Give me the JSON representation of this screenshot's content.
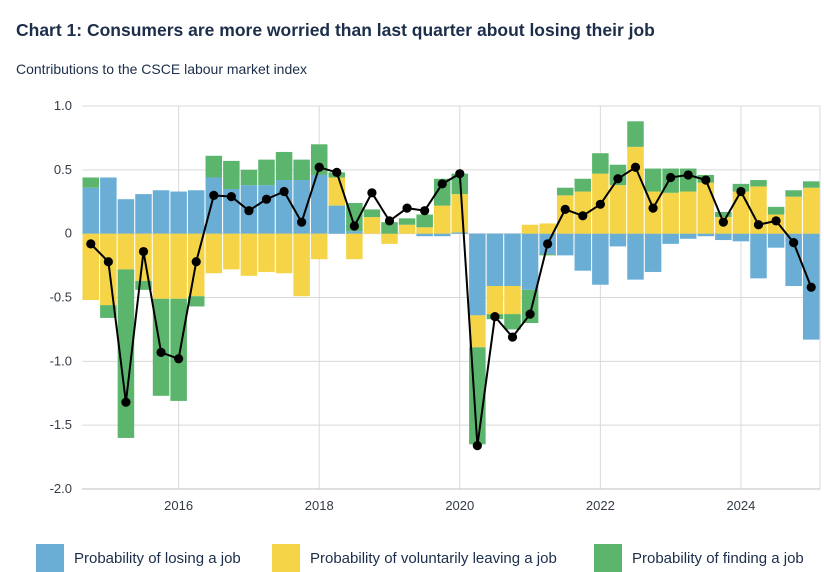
{
  "title": "Chart 1: Consumers are more worried than last quarter about losing their job",
  "subtitle": "Contributions to the CSCE labour market index",
  "colors": {
    "losing": "#6aaed6",
    "leaving": "#f5d547",
    "finding": "#5bb56c",
    "index": "#000000"
  },
  "chart_data": {
    "type": "bar",
    "stacked": true,
    "xlabel": "",
    "ylabel": "",
    "ylim": [
      -2.0,
      1.0
    ],
    "yticks": [
      "1.0",
      "0.5",
      "0",
      "-0.5",
      "-1.0",
      "-1.5",
      "-2.0"
    ],
    "xticks": [
      "2016",
      "2018",
      "2020",
      "2022",
      "2024"
    ],
    "grid": true,
    "legend_position": "bottom",
    "x": [
      "2014Q4",
      "2015Q1",
      "2015Q2",
      "2015Q3",
      "2015Q4",
      "2016Q1",
      "2016Q2",
      "2016Q3",
      "2016Q4",
      "2017Q1",
      "2017Q2",
      "2017Q3",
      "2017Q4",
      "2018Q1",
      "2018Q2",
      "2018Q3",
      "2018Q4",
      "2019Q1",
      "2019Q2",
      "2019Q3",
      "2019Q4",
      "2020Q1",
      "2020Q2",
      "2020Q3",
      "2020Q4",
      "2021Q1",
      "2021Q2",
      "2021Q3",
      "2021Q4",
      "2022Q1",
      "2022Q2",
      "2022Q3",
      "2022Q4",
      "2023Q1",
      "2023Q2",
      "2023Q3",
      "2023Q4",
      "2024Q1",
      "2024Q2",
      "2024Q3",
      "2024Q4",
      "2025Q1"
    ],
    "series": [
      {
        "name": "Probability of losing a job",
        "values": [
          0.36,
          0.44,
          0.27,
          0.31,
          0.34,
          0.33,
          0.34,
          0.44,
          0.35,
          0.38,
          0.38,
          0.42,
          0.42,
          0.46,
          0.22,
          0.02,
          0.0,
          0.0,
          0.0,
          -0.02,
          -0.02,
          0.01,
          -0.64,
          -0.41,
          -0.41,
          -0.44,
          -0.16,
          -0.17,
          -0.29,
          -0.4,
          -0.1,
          -0.36,
          -0.3,
          -0.08,
          -0.04,
          -0.02,
          -0.05,
          -0.06,
          -0.35,
          -0.11,
          -0.41,
          -0.83
        ]
      },
      {
        "name": "Probability of voluntarily leaving a job",
        "values": [
          -0.52,
          -0.56,
          -0.28,
          -0.37,
          -0.51,
          -0.51,
          -0.49,
          -0.31,
          -0.28,
          -0.33,
          -0.3,
          -0.31,
          -0.49,
          -0.2,
          0.22,
          -0.2,
          0.13,
          -0.08,
          0.07,
          0.05,
          0.22,
          0.3,
          -0.25,
          -0.22,
          -0.22,
          0.07,
          0.08,
          0.3,
          0.33,
          0.47,
          0.38,
          0.68,
          0.33,
          0.32,
          0.33,
          0.4,
          0.13,
          0.33,
          0.37,
          0.15,
          0.29,
          0.36
        ]
      },
      {
        "name": "Probability of finding a job",
        "values": [
          0.08,
          -0.1,
          -1.32,
          -0.07,
          -0.76,
          -0.8,
          -0.08,
          0.17,
          0.22,
          0.12,
          0.2,
          0.22,
          0.16,
          0.24,
          0.04,
          0.22,
          0.06,
          0.09,
          0.05,
          0.1,
          0.21,
          0.16,
          -0.76,
          -0.04,
          -0.12,
          -0.26,
          -0.01,
          0.06,
          0.1,
          0.16,
          0.16,
          0.2,
          0.18,
          0.19,
          0.18,
          0.06,
          0.04,
          0.06,
          0.05,
          0.06,
          0.05,
          0.05
        ]
      },
      {
        "name": "CSCE labour market index",
        "type": "line",
        "values": [
          -0.08,
          -0.22,
          -1.32,
          -0.14,
          -0.93,
          -0.98,
          -0.22,
          0.3,
          0.29,
          0.18,
          0.27,
          0.33,
          0.09,
          0.52,
          0.48,
          0.06,
          0.32,
          0.1,
          0.2,
          0.18,
          0.39,
          0.47,
          -1.66,
          -0.65,
          -0.81,
          -0.63,
          -0.08,
          0.19,
          0.14,
          0.23,
          0.43,
          0.52,
          0.2,
          0.44,
          0.46,
          0.42,
          0.09,
          0.33,
          0.07,
          0.1,
          -0.07,
          -0.42
        ]
      }
    ]
  },
  "legend": [
    {
      "label": "Probability of losing a job",
      "color": "#6aaed6"
    },
    {
      "label": "Probability of voluntarily leaving a job",
      "color": "#f5d547"
    },
    {
      "label": "Probability of finding a job",
      "color": "#5bb56c"
    }
  ]
}
